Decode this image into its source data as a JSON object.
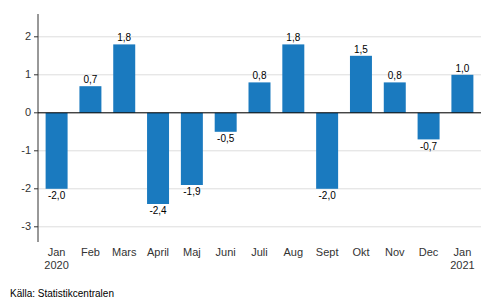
{
  "chart_data": {
    "type": "bar",
    "categories": [
      "Jan\n2020",
      "Feb",
      "Mars",
      "April",
      "Maj",
      "Juni",
      "Juli",
      "Aug",
      "Sept",
      "Okt",
      "Nov",
      "Dec",
      "Jan\n2021"
    ],
    "values": [
      -2.0,
      0.7,
      1.8,
      -2.4,
      -1.9,
      -0.5,
      0.8,
      1.8,
      -2.0,
      1.5,
      0.8,
      -0.7,
      1.0
    ],
    "value_labels": [
      "-2,0",
      "0,7",
      "1,8",
      "-2,4",
      "-1,9",
      "-0,5",
      "0,8",
      "1,8",
      "-2,0",
      "1,5",
      "0,8",
      "-0,7",
      "1,0"
    ],
    "data_labels": true,
    "color": "#1a7abf",
    "ylim": [
      -3.4,
      2.6
    ],
    "yticks": [
      -3,
      -2,
      -1,
      0,
      1,
      2
    ],
    "grid": true,
    "source": "Källa: Statistikcentralen"
  }
}
